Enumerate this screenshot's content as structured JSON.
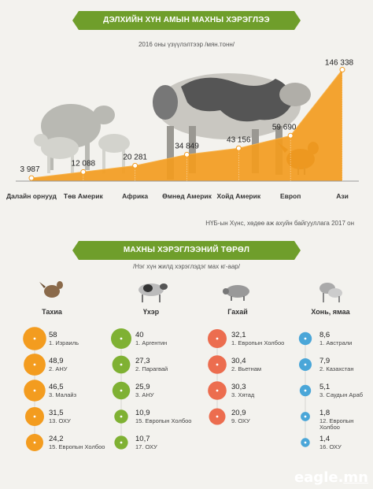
{
  "header": {
    "title": "ДЭЛХИЙН ХҮН АМЫН МАХНЫ ХЭРЭГЛЭЭ",
    "subtitle": "2016 оны үзүүлэлтээр /мян.тонн/"
  },
  "source_note": "НҮБ-ын Хүнс, хөдөө аж ахуйн байгууллага 2017 он",
  "section2": {
    "title": "МАХНЫ ХЭРЭГЛЭЭНИЙ ТӨРӨЛ",
    "subtitle": "/Нэг хүн жилд хэрэглэдэг мах  кг-аар/"
  },
  "logo": {
    "prefix": "eagle.",
    "suffix": "mn"
  },
  "colors": {
    "orange": "#f39c1f",
    "green": "#7fb133",
    "red": "#ec6d4f",
    "blue": "#4aa6d8",
    "banner": "#6f9e2b"
  },
  "icons": [
    "chicken-icon",
    "cow-icon",
    "pig-icon",
    "sheep-icon"
  ],
  "chart_data": [
    {
      "type": "area",
      "title": "ДЭЛХИЙН ХҮН АМЫН МАХНЫ ХЭРЭГЛЭЭ",
      "subtitle": "2016 оны үзүүлэлтээр /мян.тонн/",
      "categories": [
        "Далайн орнууд",
        "Төв Америк",
        "Африка",
        "Өмнөд Америк",
        "Хойд Америк",
        "Европ",
        "Ази"
      ],
      "values": [
        3987,
        12088,
        20281,
        34849,
        43156,
        59690,
        146338
      ],
      "value_labels": [
        "3 987",
        "12 088",
        "20 281",
        "34 849",
        "43 156",
        "59 690",
        "146 338"
      ],
      "ylim": [
        0,
        150000
      ]
    },
    {
      "type": "bar",
      "subtitle": "/Нэг хүн жилд хэрэглэдэг мах  кг-аар/",
      "groups": [
        {
          "name": "Тахиа",
          "icon": "chicken-icon",
          "color": "#f39c1f",
          "items": [
            {
              "value": "58",
              "label": "1. Израиль"
            },
            {
              "value": "48,9",
              "label": "2. АНУ"
            },
            {
              "value": "46,5",
              "label": "3. Малайз"
            },
            {
              "value": "31,5",
              "label": "13. ОХУ"
            },
            {
              "value": "24,2",
              "label": "15. Европын Холбоо"
            }
          ]
        },
        {
          "name": "Үхэр",
          "icon": "cow-icon",
          "color": "#7fb133",
          "items": [
            {
              "value": "40",
              "label": "1. Аргентин"
            },
            {
              "value": "27,3",
              "label": "2. Парагвай"
            },
            {
              "value": "25,9",
              "label": "3. АНУ"
            },
            {
              "value": "10,9",
              "label": "15. Европын Холбоо"
            },
            {
              "value": "10,7",
              "label": "17. ОХУ"
            }
          ]
        },
        {
          "name": "Гахай",
          "icon": "pig-icon",
          "color": "#ec6d4f",
          "items": [
            {
              "value": "32,1",
              "label": "1. Европын Холбоо"
            },
            {
              "value": "30,4",
              "label": "2. Вьетнам"
            },
            {
              "value": "30,3",
              "label": "3. Хятад"
            },
            {
              "value": "20,9",
              "label": "9. ОХУ"
            }
          ]
        },
        {
          "name": "Хонь, ямаа",
          "icon": "sheep-icon",
          "color": "#4aa6d8",
          "items": [
            {
              "value": "8,6",
              "label": "1. Австрали"
            },
            {
              "value": "7,9",
              "label": "2. Казахстан"
            },
            {
              "value": "5,1",
              "label": "3. Саудын Араб"
            },
            {
              "value": "1,8",
              "label": "12. Европын Холбоо"
            },
            {
              "value": "1,4",
              "label": "16. ОХУ"
            }
          ]
        }
      ]
    }
  ]
}
